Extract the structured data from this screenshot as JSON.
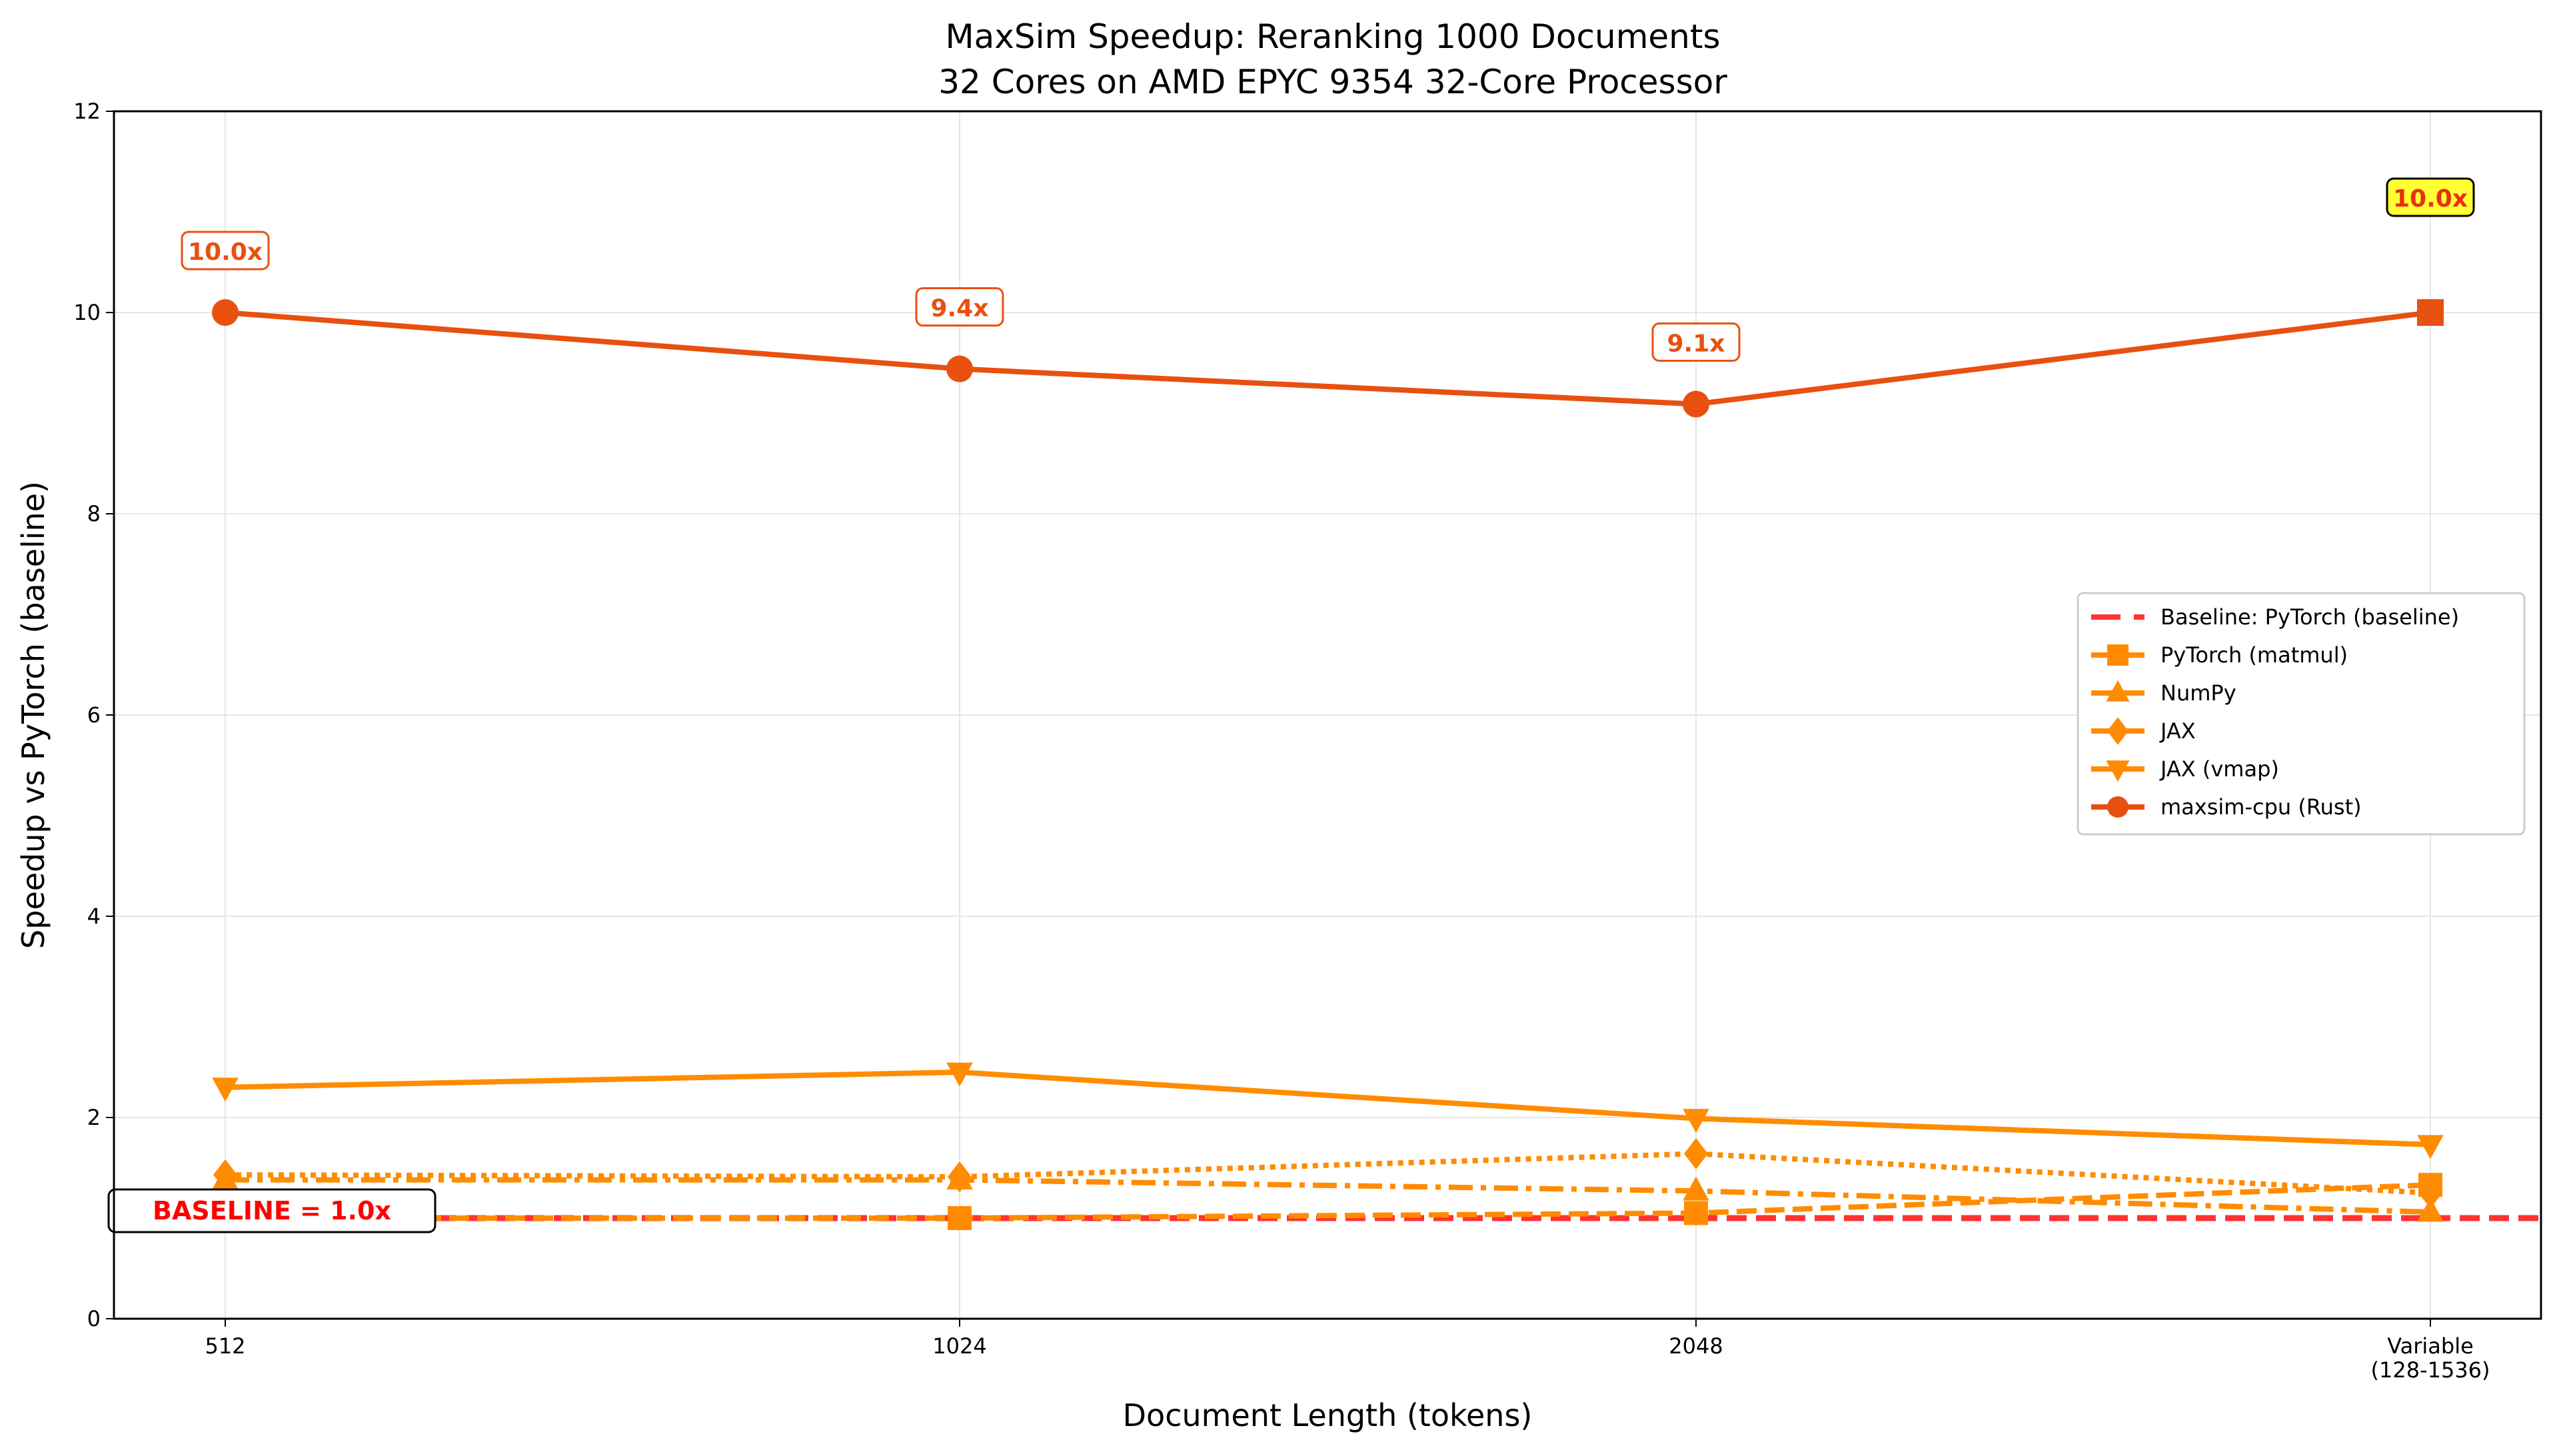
{
  "chart_data": {
    "type": "line",
    "title": "MaxSim Speedup: Reranking 1000 Documents",
    "subtitle": "32 Cores on AMD EPYC 9354 32-Core Processor",
    "xlabel": "Document Length (tokens)",
    "ylabel": "Speedup vs PyTorch (baseline)",
    "categories": [
      "512",
      "1024",
      "2048",
      "Variable\n(128-1536)"
    ],
    "ylim": [
      0,
      12
    ],
    "yticks": [
      0,
      2,
      4,
      6,
      8,
      10,
      12
    ],
    "grid": true,
    "legend_position": "center-right",
    "baseline": {
      "name": "Baseline: PyTorch (baseline)",
      "value": 1.0,
      "label": "BASELINE = 1.0x",
      "color": "#ff3333"
    },
    "series": [
      {
        "name": "PyTorch (matmul)",
        "values": [
          1.0,
          1.0,
          1.05,
          1.33
        ],
        "marker": "square",
        "dash": "dashed",
        "color": "#ff8c00"
      },
      {
        "name": "NumPy",
        "values": [
          1.38,
          1.38,
          1.27,
          1.06
        ],
        "marker": "triangle-up",
        "dash": "dashdot",
        "color": "#ff8c00"
      },
      {
        "name": "JAX",
        "values": [
          1.43,
          1.41,
          1.64,
          1.25
        ],
        "marker": "diamond",
        "dash": "dotted",
        "color": "#ff8c00"
      },
      {
        "name": "JAX (vmap)",
        "values": [
          2.3,
          2.45,
          1.99,
          1.73
        ],
        "marker": "triangle-down",
        "dash": "solid",
        "color": "#ff8c00"
      },
      {
        "name": "maxsim-cpu (Rust)",
        "values": [
          10.0,
          9.44,
          9.09,
          10.0
        ],
        "marker": "circle",
        "dash": "solid",
        "color": "#e85010"
      }
    ],
    "annotations": [
      "10.0x",
      "9.4x",
      "9.1x",
      "10.0x"
    ],
    "highlight_color": "#ffff33"
  }
}
